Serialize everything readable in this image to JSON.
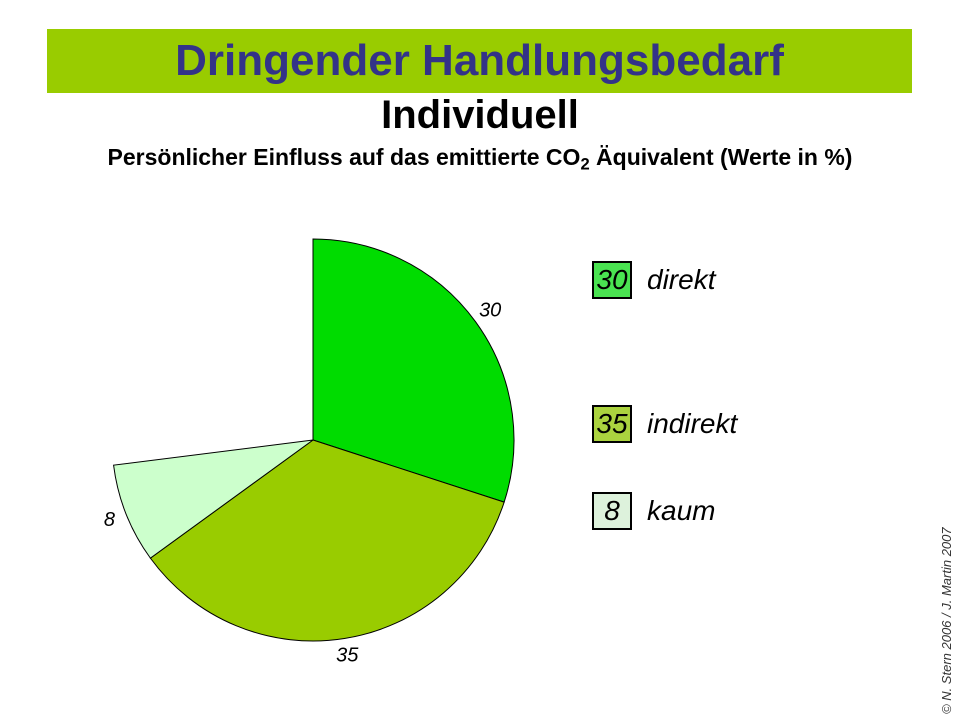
{
  "slide": {
    "banner": {
      "title": "Dringender Handlungsbedarf",
      "bg_color": "#99CC00",
      "text_color": "#333388"
    },
    "subtitle": "Individuell",
    "caption": {
      "pre": "Persönlicher Einfluss auf das emittierte CO",
      "sub": "2",
      "post": " Äquivalent (Werte in %)"
    },
    "credit": "© N. Stern 2006 /  J. Martin 2007"
  },
  "chart_data": {
    "type": "pie",
    "title": "Persönlicher Einfluss auf das emittierte CO2 Äquivalent (Werte in %)",
    "unit": "%",
    "start_angle_deg": 0,
    "direction": "clockwise",
    "angle_basis_total": 100,
    "note": "Slices sum to 73%; remaining 27% of the circle is left empty (white gap at upper left).",
    "slices": [
      {
        "label": "direkt",
        "value": 30,
        "color": "#00DC00",
        "legend_color": "#4AE351"
      },
      {
        "label": "indirekt",
        "value": 35,
        "color": "#99CC00",
        "legend_color": "#ABD33F"
      },
      {
        "label": "kaum",
        "value": 8,
        "color": "#CCFFCC",
        "legend_color": "#DDF2DC"
      }
    ],
    "value_labels": [
      "30",
      "35",
      "8"
    ],
    "legend_position": "right"
  }
}
